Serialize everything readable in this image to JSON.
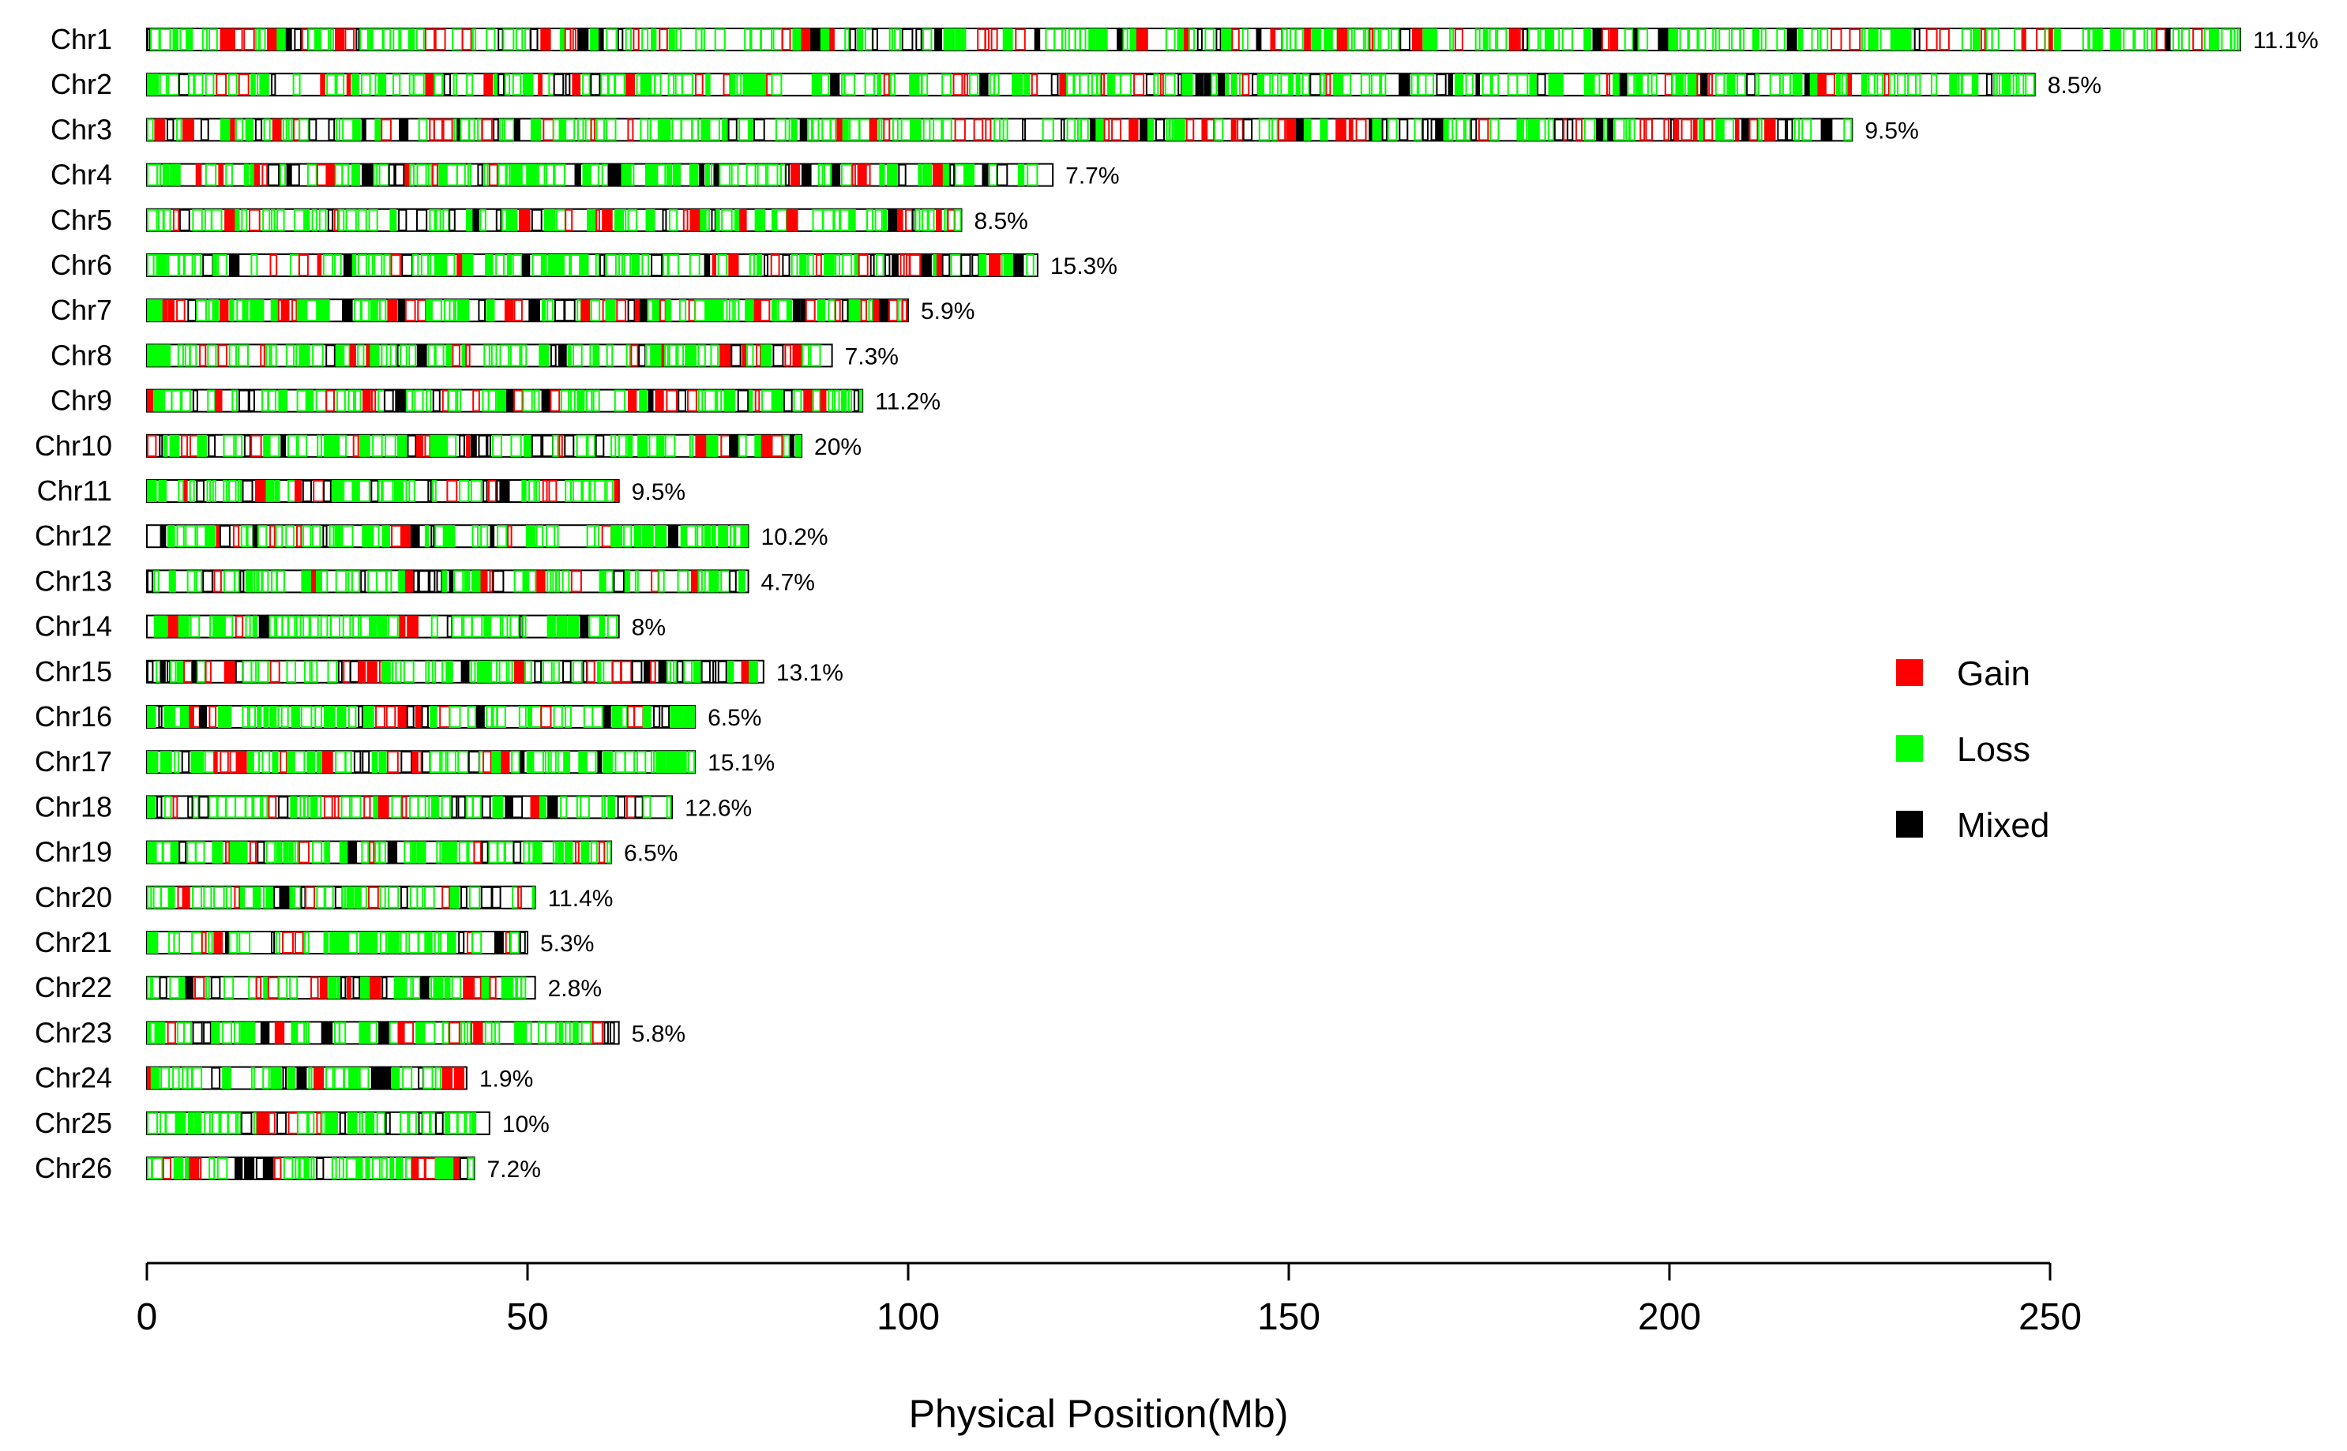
{
  "chart_data": {
    "type": "chromosome_density",
    "xlabel": "Physical Position(Mb)",
    "xlim": [
      0,
      250
    ],
    "x_ticks": [
      "0",
      "50",
      "100",
      "150",
      "200",
      "250"
    ],
    "chromosomes": [
      {
        "name": "Chr1",
        "length": 275,
        "percent": "11.1%"
      },
      {
        "name": "Chr2",
        "length": 248,
        "percent": "8.5%"
      },
      {
        "name": "Chr3",
        "length": 224,
        "percent": "9.5%"
      },
      {
        "name": "Chr4",
        "length": 119,
        "percent": "7.7%"
      },
      {
        "name": "Chr5",
        "length": 107,
        "percent": "8.5%"
      },
      {
        "name": "Chr6",
        "length": 117,
        "percent": "15.3%"
      },
      {
        "name": "Chr7",
        "length": 100,
        "percent": "5.9%"
      },
      {
        "name": "Chr8",
        "length": 90,
        "percent": "7.3%"
      },
      {
        "name": "Chr9",
        "length": 94,
        "percent": "11.2%"
      },
      {
        "name": "Chr10",
        "length": 86,
        "percent": "20%"
      },
      {
        "name": "Chr11",
        "length": 62,
        "percent": "9.5%"
      },
      {
        "name": "Chr12",
        "length": 79,
        "percent": "10.2%"
      },
      {
        "name": "Chr13",
        "length": 79,
        "percent": "4.7%"
      },
      {
        "name": "Chr14",
        "length": 62,
        "percent": "8%"
      },
      {
        "name": "Chr15",
        "length": 81,
        "percent": "13.1%"
      },
      {
        "name": "Chr16",
        "length": 72,
        "percent": "6.5%"
      },
      {
        "name": "Chr17",
        "length": 72,
        "percent": "15.1%"
      },
      {
        "name": "Chr18",
        "length": 69,
        "percent": "12.6%"
      },
      {
        "name": "Chr19",
        "length": 61,
        "percent": "6.5%"
      },
      {
        "name": "Chr20",
        "length": 51,
        "percent": "11.4%"
      },
      {
        "name": "Chr21",
        "length": 50,
        "percent": "5.3%"
      },
      {
        "name": "Chr22",
        "length": 51,
        "percent": "2.8%"
      },
      {
        "name": "Chr23",
        "length": 62,
        "percent": "5.8%"
      },
      {
        "name": "Chr24",
        "length": 42,
        "percent": "1.9%"
      },
      {
        "name": "Chr25",
        "length": 45,
        "percent": "10%"
      },
      {
        "name": "Chr26",
        "length": 43,
        "percent": "7.2%"
      }
    ],
    "legend": [
      {
        "label": "Gain",
        "color": "#ff0000"
      },
      {
        "label": "Loss",
        "color": "#00ff00"
      },
      {
        "label": "Mixed",
        "color": "#000000"
      }
    ]
  }
}
